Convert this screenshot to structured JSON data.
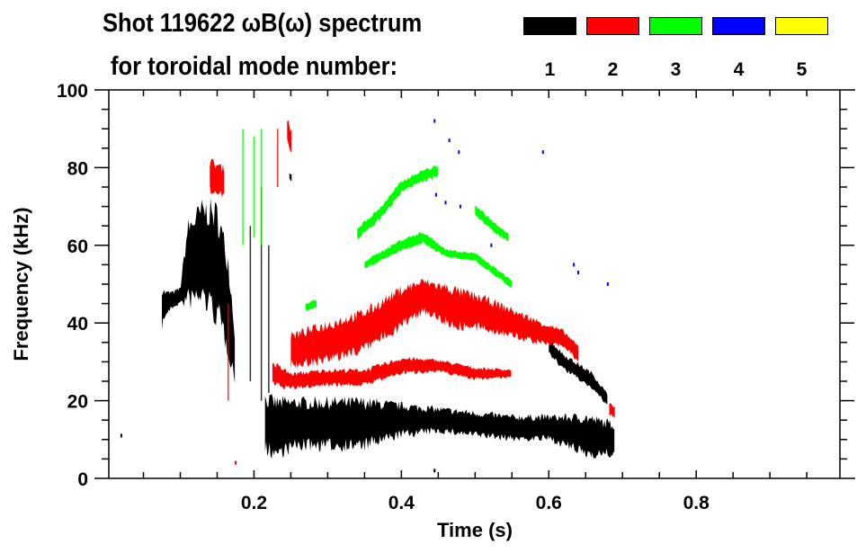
{
  "title_line1": "Shot 119622 ωB(ω) spectrum",
  "title_line2": "for toroidal mode number:",
  "legend": [
    {
      "label": "1",
      "color": "#000000"
    },
    {
      "label": "2",
      "color": "#ff0000"
    },
    {
      "label": "3",
      "color": "#00ff00"
    },
    {
      "label": "4",
      "color": "#0000ff"
    },
    {
      "label": "5",
      "color": "#ffff00"
    }
  ],
  "chart_data": {
    "type": "heatmap",
    "title": "Shot 119622 ωB(ω) spectrum",
    "xlabel": "Time (s)",
    "ylabel": "Frequency (kHz)",
    "xlim": [
      0.003,
      0.995
    ],
    "ylim": [
      0,
      100
    ],
    "xticks": [
      0.2,
      0.4,
      0.6,
      0.8
    ],
    "xtick_labels": [
      "0.2",
      "0.4",
      "0.6",
      "0.8"
    ],
    "yticks": [
      0,
      20,
      40,
      60,
      80,
      100
    ],
    "ytick_labels": [
      "0",
      "20",
      "40",
      "60",
      "80",
      "100"
    ],
    "x_minor_step": 0.05,
    "y_minor_step": 5,
    "tracks": [
      {
        "mode": 1,
        "name": "early-chaotic-mode",
        "points": [
          [
            0.075,
            44,
            5
          ],
          [
            0.08,
            45,
            3
          ],
          [
            0.09,
            46,
            2
          ],
          [
            0.1,
            47,
            2
          ],
          [
            0.11,
            55,
            10
          ],
          [
            0.13,
            58,
            12
          ],
          [
            0.15,
            55,
            14
          ],
          [
            0.165,
            45,
            12
          ],
          [
            0.175,
            30,
            6
          ]
        ]
      },
      {
        "mode": 1,
        "name": "low-frequency-band",
        "points": [
          [
            0.215,
            14,
            7
          ],
          [
            0.23,
            13,
            7
          ],
          [
            0.26,
            14,
            6
          ],
          [
            0.3,
            14,
            6
          ],
          [
            0.35,
            14,
            6
          ],
          [
            0.4,
            15,
            4
          ],
          [
            0.45,
            15,
            3
          ],
          [
            0.5,
            14,
            3
          ],
          [
            0.55,
            13,
            3
          ],
          [
            0.6,
            13,
            3
          ],
          [
            0.65,
            11,
            5
          ],
          [
            0.69,
            10,
            4
          ]
        ]
      },
      {
        "mode": 1,
        "name": "late-descending-branch",
        "points": [
          [
            0.6,
            34,
            2
          ],
          [
            0.62,
            30,
            2
          ],
          [
            0.66,
            25,
            2
          ],
          [
            0.68,
            20,
            1.5
          ]
        ]
      },
      {
        "mode": 1,
        "name": "burst-top",
        "points": [
          [
            0.248,
            78,
            1
          ],
          [
            0.252,
            77,
            1
          ]
        ]
      },
      {
        "mode": 2,
        "name": "early-high-mode",
        "points": [
          [
            0.14,
            78,
            4
          ],
          [
            0.16,
            76,
            4
          ]
        ]
      },
      {
        "mode": 2,
        "name": "high-burst",
        "points": [
          [
            0.245,
            90,
            3
          ],
          [
            0.252,
            86,
            3
          ]
        ]
      },
      {
        "mode": 2,
        "name": "lower-band",
        "points": [
          [
            0.225,
            27,
            3
          ],
          [
            0.25,
            25,
            2
          ],
          [
            0.3,
            26,
            2
          ],
          [
            0.35,
            26,
            2
          ],
          [
            0.4,
            29,
            2
          ],
          [
            0.45,
            29,
            1.5
          ],
          [
            0.5,
            27,
            1.5
          ],
          [
            0.55,
            27,
            1
          ]
        ]
      },
      {
        "mode": 2,
        "name": "upper-band",
        "points": [
          [
            0.25,
            33,
            4
          ],
          [
            0.3,
            35,
            5
          ],
          [
            0.35,
            38,
            5
          ],
          [
            0.4,
            44,
            5
          ],
          [
            0.43,
            47,
            4
          ],
          [
            0.47,
            44,
            5
          ],
          [
            0.52,
            42,
            4
          ],
          [
            0.58,
            38,
            3
          ],
          [
            0.62,
            36,
            2
          ],
          [
            0.64,
            32,
            2
          ]
        ]
      },
      {
        "mode": 2,
        "name": "end-blip",
        "points": [
          [
            0.682,
            18,
            1.5
          ],
          [
            0.69,
            17,
            1.5
          ]
        ]
      },
      {
        "mode": 3,
        "name": "upper-arc",
        "points": [
          [
            0.34,
            63,
            1.5
          ],
          [
            0.37,
            68,
            1.5
          ],
          [
            0.4,
            75,
            1.5
          ],
          [
            0.43,
            78,
            1.5
          ],
          [
            0.45,
            79,
            1.5
          ]
        ]
      },
      {
        "mode": 3,
        "name": "upper-arc-tail",
        "points": [
          [
            0.5,
            69,
            1.5
          ],
          [
            0.53,
            64,
            1.2
          ],
          [
            0.545,
            62,
            1
          ]
        ]
      },
      {
        "mode": 3,
        "name": "lower-arc",
        "points": [
          [
            0.35,
            55,
            1
          ],
          [
            0.4,
            60,
            1.5
          ],
          [
            0.43,
            62,
            1.5
          ],
          [
            0.46,
            58,
            1
          ],
          [
            0.5,
            57,
            1
          ],
          [
            0.55,
            50,
            1
          ]
        ]
      },
      {
        "mode": 3,
        "name": "small-blip",
        "points": [
          [
            0.27,
            44,
            1
          ],
          [
            0.285,
            45,
            1
          ]
        ]
      }
    ],
    "vertical_streaks": [
      {
        "mode": 1,
        "t": 0.195,
        "f": [
          25,
          65
        ]
      },
      {
        "mode": 1,
        "t": 0.21,
        "f": [
          20,
          75
        ]
      },
      {
        "mode": 1,
        "t": 0.22,
        "f": [
          22,
          60
        ]
      },
      {
        "mode": 2,
        "t": 0.165,
        "f": [
          20,
          45
        ]
      },
      {
        "mode": 2,
        "t": 0.232,
        "f": [
          75,
          90
        ]
      },
      {
        "mode": 3,
        "t": 0.185,
        "f": [
          60,
          90
        ]
      },
      {
        "mode": 3,
        "t": 0.2,
        "f": [
          62,
          88
        ]
      },
      {
        "mode": 3,
        "t": 0.21,
        "f": [
          60,
          90
        ]
      }
    ],
    "points": [
      {
        "mode": 4,
        "t": 0.445,
        "f": 92
      },
      {
        "mode": 4,
        "t": 0.465,
        "f": 87
      },
      {
        "mode": 4,
        "t": 0.478,
        "f": 84
      },
      {
        "mode": 4,
        "t": 0.447,
        "f": 73
      },
      {
        "mode": 4,
        "t": 0.46,
        "f": 71
      },
      {
        "mode": 4,
        "t": 0.48,
        "f": 70
      },
      {
        "mode": 4,
        "t": 0.592,
        "f": 84
      },
      {
        "mode": 4,
        "t": 0.634,
        "f": 55
      },
      {
        "mode": 4,
        "t": 0.64,
        "f": 53
      },
      {
        "mode": 4,
        "t": 0.522,
        "f": 60
      },
      {
        "mode": 4,
        "t": 0.68,
        "f": 50
      },
      {
        "mode": 1,
        "t": 0.02,
        "f": 11
      },
      {
        "mode": 2,
        "t": 0.175,
        "f": 4
      },
      {
        "mode": 1,
        "t": 0.445,
        "f": 2
      }
    ]
  }
}
